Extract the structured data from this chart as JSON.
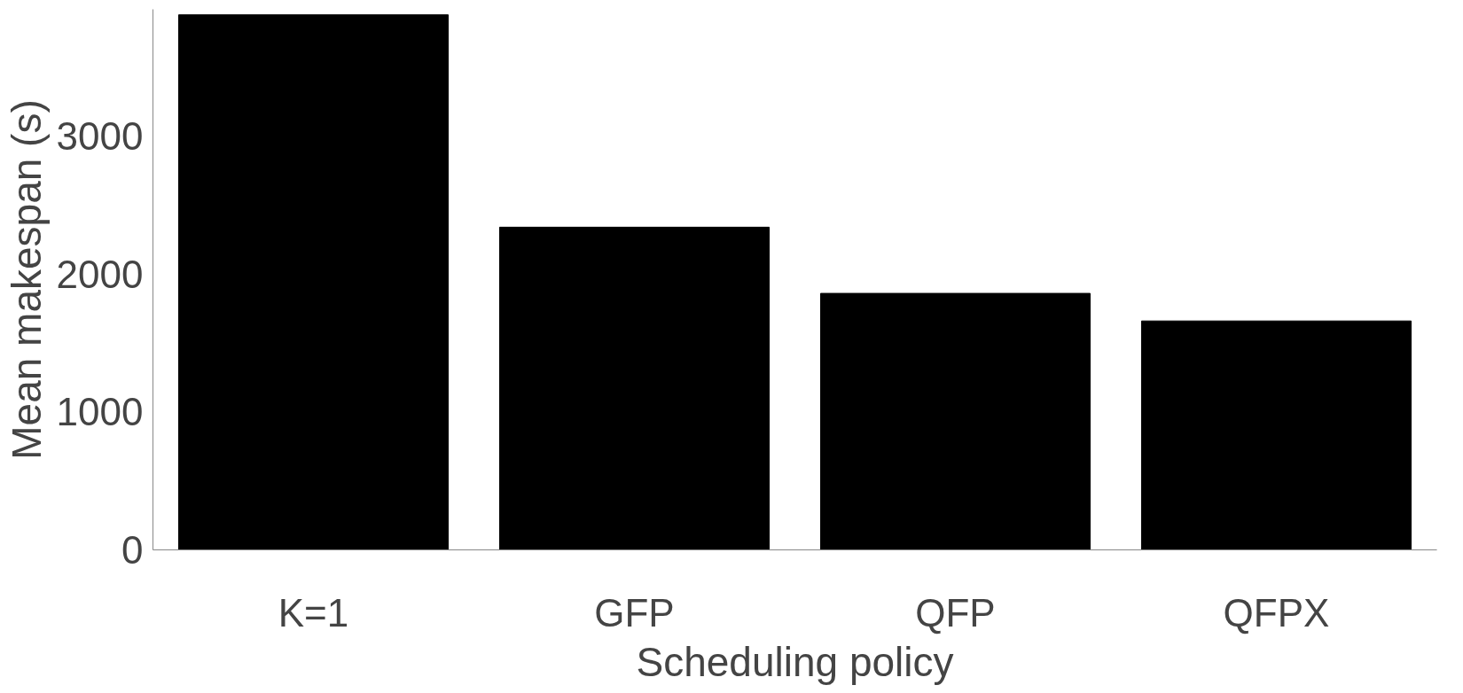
{
  "chart_data": {
    "type": "bar",
    "xlabel": "Scheduling policy",
    "ylabel": "Mean makespan (s)",
    "categories": [
      "K=1",
      "GFP",
      "QFP",
      "QFPX"
    ],
    "values": [
      3880,
      2340,
      1860,
      1660
    ],
    "color": "#000000",
    "ylim": [
      0,
      3920
    ],
    "yticks": [
      0,
      1000,
      2000,
      3000
    ],
    "grid": false
  }
}
